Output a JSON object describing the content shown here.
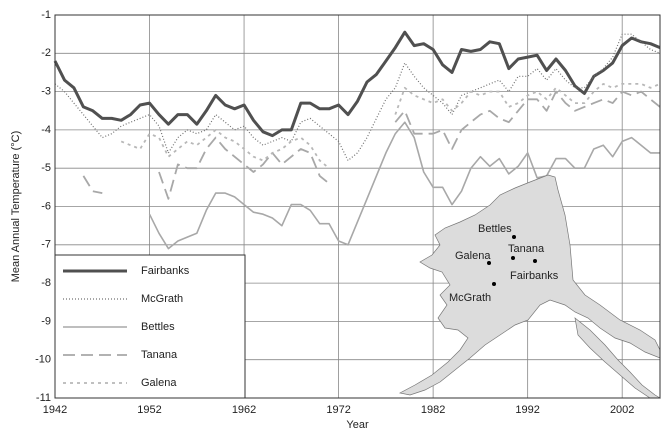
{
  "chart_data": {
    "type": "line",
    "xlabel": "Year",
    "ylabel": "Mean Annual Temperature (°C)",
    "x": [
      1942,
      1943,
      1944,
      1945,
      1946,
      1947,
      1948,
      1949,
      1950,
      1951,
      1952,
      1953,
      1954,
      1955,
      1956,
      1957,
      1958,
      1959,
      1960,
      1961,
      1962,
      1963,
      1964,
      1965,
      1966,
      1967,
      1968,
      1969,
      1970,
      1971,
      1972,
      1973,
      1974,
      1975,
      1976,
      1977,
      1978,
      1979,
      1980,
      1981,
      1982,
      1983,
      1984,
      1985,
      1986,
      1987,
      1988,
      1989,
      1990,
      1991,
      1992,
      1993,
      1994,
      1995,
      1996,
      1997,
      1998,
      1999,
      2000,
      2001,
      2002,
      2003,
      2004,
      2005,
      2006
    ],
    "xlim": [
      1942,
      2006
    ],
    "xticks": [
      1942,
      1952,
      1962,
      1972,
      1982,
      1992,
      2002
    ],
    "ylim": [
      -11,
      -1
    ],
    "yticks": [
      -11,
      -10,
      -9,
      -8,
      -7,
      -6,
      -5,
      -4,
      -3,
      -2,
      -1
    ],
    "grid": true,
    "legend": "lower left",
    "series": [
      {
        "name": "Fairbanks",
        "color": "#505050",
        "style": "thick",
        "values": [
          -2.2,
          -2.7,
          -2.9,
          -3.4,
          -3.5,
          -3.7,
          -3.7,
          -3.75,
          -3.6,
          -3.35,
          -3.3,
          -3.6,
          -3.85,
          -3.6,
          -3.6,
          -3.85,
          -3.5,
          -3.1,
          -3.35,
          -3.45,
          -3.35,
          -3.75,
          -4.05,
          -4.15,
          -4.0,
          -4.0,
          -3.3,
          -3.3,
          -3.45,
          -3.45,
          -3.35,
          -3.6,
          -3.25,
          -2.75,
          -2.55,
          -2.2,
          -1.85,
          -1.45,
          -1.8,
          -1.75,
          -1.9,
          -2.3,
          -2.5,
          -1.9,
          -1.95,
          -1.9,
          -1.7,
          -1.75,
          -2.4,
          -2.15,
          -2.1,
          -2.05,
          -2.45,
          -2.15,
          -2.45,
          -2.85,
          -3.05,
          -2.6,
          -2.45,
          -2.25,
          -1.8,
          -1.6,
          -1.7,
          -1.75,
          -1.85
        ]
      },
      {
        "name": "McGrath",
        "color": "#707070",
        "style": "dotted",
        "values": [
          -2.8,
          -3.0,
          -3.3,
          -3.6,
          -3.9,
          -4.2,
          -4.1,
          -3.9,
          -3.8,
          -3.7,
          -3.6,
          -3.9,
          -4.6,
          -4.2,
          -4.0,
          -4.1,
          -4.0,
          -3.6,
          -3.8,
          -4.0,
          -3.9,
          -4.2,
          -4.4,
          -4.3,
          -4.2,
          -4.3,
          -3.8,
          -3.7,
          -3.9,
          -4.1,
          -4.3,
          -4.8,
          -4.6,
          -4.2,
          -3.7,
          -3.2,
          -2.9,
          -2.25,
          -2.6,
          -2.9,
          -3.1,
          -3.3,
          -3.6,
          -3.1,
          -3.0,
          -2.9,
          -2.8,
          -2.7,
          -3.0,
          -2.6,
          -2.6,
          -2.4,
          -2.7,
          -2.4,
          -2.7,
          -2.9,
          -2.9,
          -2.6,
          -2.4,
          -2.1,
          -1.5,
          -1.5,
          -1.7,
          -1.9,
          -2.0
        ]
      },
      {
        "name": "Bettles",
        "color": "#a8a8a8",
        "style": "solid",
        "values": [
          null,
          null,
          null,
          null,
          null,
          null,
          null,
          null,
          null,
          null,
          -6.2,
          -6.7,
          -7.1,
          -6.9,
          -6.8,
          -6.7,
          -6.1,
          -5.65,
          -5.65,
          -5.75,
          -5.95,
          -6.15,
          -6.2,
          -6.3,
          -6.5,
          -5.95,
          -5.95,
          -6.1,
          -6.45,
          -6.45,
          -6.9,
          -7.0,
          -6.4,
          -5.8,
          -5.2,
          -4.6,
          -4.1,
          -3.8,
          -4.2,
          -5.1,
          -5.5,
          -5.5,
          -5.95,
          -5.6,
          -5.0,
          -4.7,
          -4.95,
          -4.75,
          -5.15,
          -4.95,
          -4.6,
          -5.25,
          -5.2,
          -4.75,
          -4.75,
          -5.0,
          -5.0,
          -4.5,
          -4.4,
          -4.7,
          -4.3,
          -4.2,
          -4.4,
          -4.6,
          -4.6
        ]
      },
      {
        "name": "Tanana",
        "color": "#a8a8a8",
        "style": "dashed",
        "values": [
          null,
          null,
          null,
          -5.2,
          -5.6,
          -5.65,
          null,
          null,
          null,
          null,
          null,
          -5.1,
          -5.8,
          -4.9,
          -5.0,
          -5.0,
          -4.5,
          -4.2,
          -4.5,
          -4.7,
          -4.9,
          -5.1,
          -4.9,
          -4.6,
          -4.9,
          -4.7,
          -4.5,
          -4.6,
          -5.2,
          -5.4,
          null,
          null,
          null,
          null,
          null,
          null,
          -3.8,
          -3.5,
          -4.1,
          -4.1,
          -4.1,
          -4.0,
          -4.5,
          -4.0,
          -3.8,
          -3.6,
          -3.5,
          -3.7,
          -3.8,
          -3.5,
          -3.2,
          -3.2,
          -3.5,
          -3.0,
          -3.3,
          -3.5,
          -3.4,
          -3.3,
          -3.2,
          -3.3,
          -3.0,
          -3.1,
          -3.0,
          -3.2,
          -3.4
        ]
      },
      {
        "name": "Galena",
        "color": "#b8b8b8",
        "style": "short-dashed",
        "values": [
          null,
          null,
          null,
          null,
          null,
          null,
          null,
          -4.3,
          -4.4,
          -4.5,
          -4.1,
          -4.2,
          -4.7,
          -4.5,
          -4.3,
          -4.4,
          -4.2,
          -4.0,
          -4.2,
          -4.3,
          -4.5,
          -4.7,
          -4.8,
          -4.6,
          -4.5,
          -4.3,
          -4.2,
          -4.4,
          -4.8,
          -5.0,
          null,
          null,
          null,
          null,
          null,
          null,
          -3.6,
          -2.9,
          -3.1,
          -3.2,
          -3.3,
          -3.2,
          -3.5,
          -3.3,
          -3.0,
          -3.1,
          -3.0,
          -3.0,
          -3.4,
          -3.3,
          -3.1,
          -3.0,
          -3.2,
          -2.9,
          -3.1,
          -3.3,
          -3.3,
          -3.0,
          -2.8,
          -2.9,
          -2.8,
          -2.8,
          -2.8,
          -2.9,
          -2.8
        ]
      }
    ],
    "map_labels": [
      "Bettles",
      "Tanana",
      "Galena",
      "Fairbanks",
      "McGrath"
    ]
  }
}
